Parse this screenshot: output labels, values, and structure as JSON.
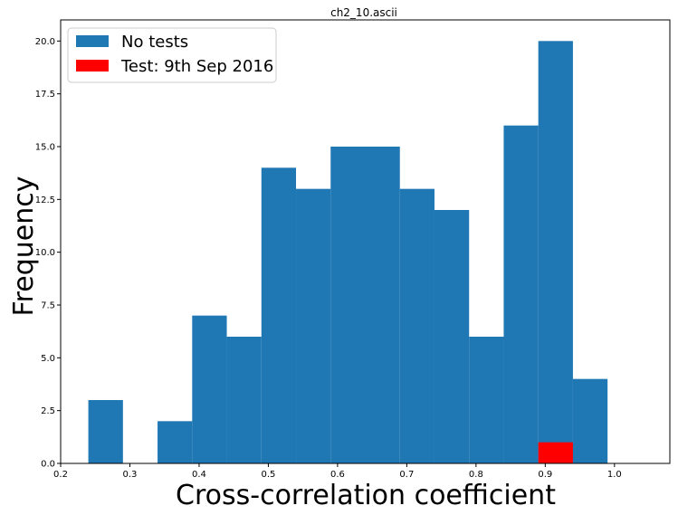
{
  "chart_data": {
    "type": "bar",
    "title": "ch2_10.ascii",
    "xlabel": "Cross-correlation coefficient",
    "ylabel": "Frequency",
    "xlim": [
      0.2,
      1.08
    ],
    "ylim": [
      0,
      21
    ],
    "xticks": [
      "0.2",
      "0.3",
      "0.4",
      "0.5",
      "0.6",
      "0.7",
      "0.8",
      "0.9",
      "1.0"
    ],
    "xtick_values": [
      0.2,
      0.3,
      0.4,
      0.5,
      0.6,
      0.7,
      0.8,
      0.9,
      1.0
    ],
    "yticks": [
      "0.0",
      "2.5",
      "5.0",
      "7.5",
      "10.0",
      "12.5",
      "15.0",
      "17.5",
      "20.0"
    ],
    "ytick_values": [
      0,
      2.5,
      5,
      7.5,
      10,
      12.5,
      15,
      17.5,
      20
    ],
    "legend_position": "top-left",
    "grid": false,
    "series": [
      {
        "name": "No tests",
        "color": "#1f77b4",
        "bins": [
          {
            "x0": 0.24,
            "x1": 0.29,
            "value": 3
          },
          {
            "x0": 0.34,
            "x1": 0.39,
            "value": 2
          },
          {
            "x0": 0.39,
            "x1": 0.44,
            "value": 7
          },
          {
            "x0": 0.44,
            "x1": 0.49,
            "value": 6
          },
          {
            "x0": 0.49,
            "x1": 0.54,
            "value": 14
          },
          {
            "x0": 0.54,
            "x1": 0.59,
            "value": 13
          },
          {
            "x0": 0.59,
            "x1": 0.64,
            "value": 15
          },
          {
            "x0": 0.64,
            "x1": 0.69,
            "value": 15
          },
          {
            "x0": 0.69,
            "x1": 0.74,
            "value": 13
          },
          {
            "x0": 0.74,
            "x1": 0.79,
            "value": 12
          },
          {
            "x0": 0.79,
            "x1": 0.84,
            "value": 6
          },
          {
            "x0": 0.84,
            "x1": 0.89,
            "value": 16
          },
          {
            "x0": 0.89,
            "x1": 0.94,
            "value": 20
          },
          {
            "x0": 0.94,
            "x1": 0.99,
            "value": 4
          }
        ]
      },
      {
        "name": "Test: 9th Sep 2016",
        "color": "#ff0000",
        "bins": [
          {
            "x0": 0.89,
            "x1": 0.94,
            "value": 1
          }
        ]
      }
    ]
  }
}
